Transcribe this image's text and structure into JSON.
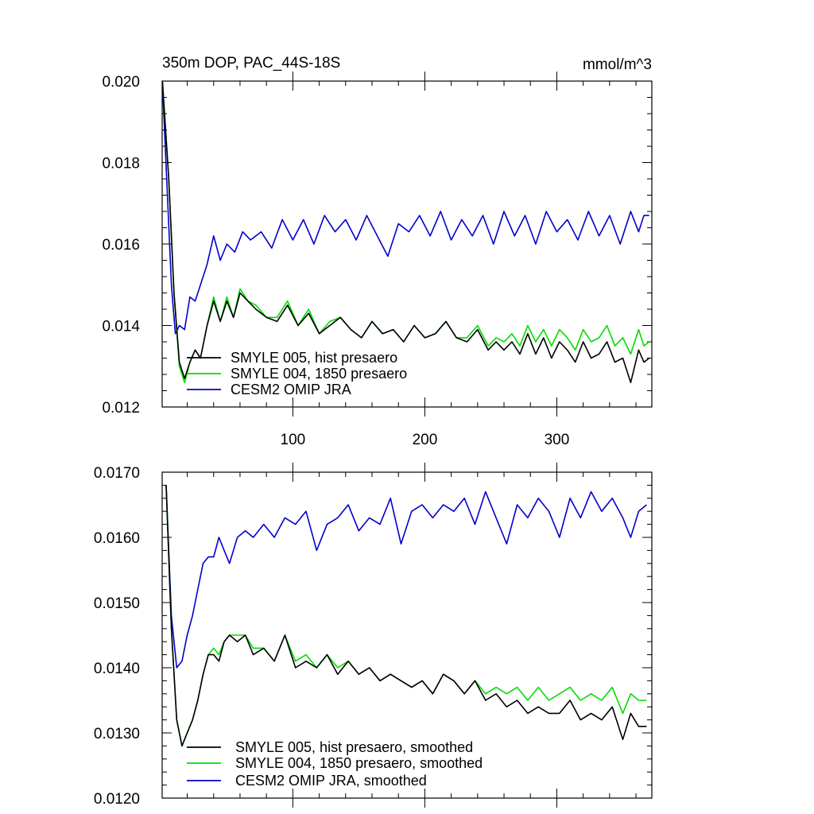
{
  "chart_data": [
    {
      "type": "line",
      "title": "350m DOP, PAC_44S-18S",
      "units": "mmol/m^3",
      "xlim": [
        1,
        372
      ],
      "ylim": [
        0.012,
        0.02
      ],
      "xticks": [
        100,
        200,
        300
      ],
      "yticks": [
        "0.012",
        "0.014",
        "0.016",
        "0.018",
        "0.020"
      ],
      "legend_position": "bottom-left",
      "series": [
        {
          "name": "SMYLE 005, hist presaero",
          "color": "#000000",
          "x": [
            1,
            6,
            10,
            14,
            18,
            22,
            26,
            30,
            35,
            40,
            45,
            50,
            55,
            60,
            66,
            72,
            80,
            88,
            96,
            104,
            112,
            120,
            128,
            136,
            144,
            152,
            160,
            168,
            176,
            184,
            192,
            200,
            208,
            216,
            224,
            232,
            240,
            248,
            254,
            260,
            266,
            272,
            278,
            284,
            290,
            296,
            302,
            308,
            314,
            320,
            326,
            332,
            338,
            344,
            350,
            356,
            362,
            366,
            370
          ],
          "values": [
            0.0201,
            0.0176,
            0.0148,
            0.0131,
            0.0127,
            0.0131,
            0.0134,
            0.0132,
            0.014,
            0.0146,
            0.0141,
            0.0146,
            0.0142,
            0.0148,
            0.0146,
            0.0144,
            0.0142,
            0.0141,
            0.0145,
            0.014,
            0.0143,
            0.0138,
            0.014,
            0.0142,
            0.0139,
            0.0137,
            0.0141,
            0.0138,
            0.0139,
            0.0136,
            0.014,
            0.0137,
            0.0138,
            0.0141,
            0.0137,
            0.0136,
            0.0139,
            0.0134,
            0.0136,
            0.0134,
            0.0136,
            0.0133,
            0.0138,
            0.0133,
            0.0137,
            0.0132,
            0.0136,
            0.0134,
            0.0131,
            0.0136,
            0.0132,
            0.0133,
            0.0136,
            0.0131,
            0.0132,
            0.0126,
            0.0134,
            0.0131,
            0.0132
          ]
        },
        {
          "name": "SMYLE 004, 1850 presaero",
          "color": "#00dd00",
          "x": [
            1,
            6,
            10,
            14,
            18,
            22,
            26,
            30,
            35,
            40,
            45,
            50,
            55,
            60,
            66,
            72,
            80,
            88,
            96,
            104,
            112,
            120,
            128,
            136,
            144,
            152,
            160,
            168,
            176,
            184,
            192,
            200,
            208,
            216,
            224,
            232,
            240,
            248,
            254,
            260,
            266,
            272,
            278,
            284,
            290,
            296,
            302,
            308,
            314,
            320,
            326,
            332,
            338,
            344,
            350,
            356,
            362,
            366,
            370
          ],
          "values": [
            0.0201,
            0.0176,
            0.0148,
            0.013,
            0.0126,
            0.0131,
            0.0134,
            0.0132,
            0.014,
            0.0147,
            0.0141,
            0.0147,
            0.0142,
            0.0149,
            0.0146,
            0.0145,
            0.0142,
            0.0142,
            0.0146,
            0.014,
            0.0144,
            0.0138,
            0.0141,
            0.0142,
            0.0139,
            0.0137,
            0.0141,
            0.0138,
            0.0139,
            0.0136,
            0.014,
            0.0137,
            0.0138,
            0.0141,
            0.0137,
            0.0137,
            0.014,
            0.0135,
            0.0137,
            0.0136,
            0.0138,
            0.0135,
            0.014,
            0.0136,
            0.0139,
            0.0135,
            0.0139,
            0.0137,
            0.0134,
            0.0139,
            0.0136,
            0.0137,
            0.014,
            0.0135,
            0.0137,
            0.0133,
            0.0139,
            0.0135,
            0.0136
          ]
        },
        {
          "name": "CESM2 OMIP JRA",
          "color": "#0000cc",
          "x": [
            1,
            5,
            8,
            11,
            14,
            18,
            22,
            26,
            30,
            35,
            40,
            45,
            50,
            56,
            62,
            68,
            76,
            84,
            92,
            100,
            108,
            116,
            124,
            132,
            140,
            148,
            156,
            164,
            172,
            180,
            188,
            196,
            204,
            212,
            220,
            228,
            236,
            244,
            252,
            260,
            268,
            276,
            284,
            292,
            300,
            308,
            316,
            324,
            332,
            340,
            348,
            356,
            362,
            366,
            370
          ],
          "values": [
            0.0201,
            0.0172,
            0.015,
            0.0138,
            0.014,
            0.0139,
            0.0147,
            0.0146,
            0.015,
            0.0155,
            0.0162,
            0.0156,
            0.016,
            0.0158,
            0.0163,
            0.0161,
            0.0163,
            0.0159,
            0.0166,
            0.0161,
            0.0166,
            0.016,
            0.0167,
            0.0163,
            0.0166,
            0.0161,
            0.0167,
            0.0162,
            0.0157,
            0.0165,
            0.0163,
            0.0167,
            0.0162,
            0.0168,
            0.0161,
            0.0166,
            0.0162,
            0.0167,
            0.016,
            0.0168,
            0.0162,
            0.0167,
            0.016,
            0.0168,
            0.0163,
            0.0166,
            0.0161,
            0.0168,
            0.0162,
            0.0167,
            0.016,
            0.0168,
            0.0163,
            0.0167,
            0.0167
          ]
        }
      ]
    },
    {
      "type": "line",
      "title": "",
      "xlim": [
        1,
        372
      ],
      "ylim": [
        0.012,
        0.017
      ],
      "xticks": [
        100,
        200,
        300
      ],
      "yticks": [
        "0.0120",
        "0.0130",
        "0.0140",
        "0.0150",
        "0.0160",
        "0.0170"
      ],
      "legend_position": "bottom-left",
      "series": [
        {
          "name": "SMYLE 005, hist presaero, smoothed",
          "color": "#000000",
          "x": [
            4,
            8,
            12,
            16,
            20,
            24,
            28,
            32,
            36,
            40,
            44,
            48,
            52,
            58,
            64,
            70,
            78,
            86,
            94,
            102,
            110,
            118,
            126,
            134,
            142,
            150,
            158,
            166,
            174,
            182,
            190,
            198,
            206,
            214,
            222,
            230,
            238,
            246,
            254,
            262,
            270,
            278,
            286,
            294,
            302,
            310,
            318,
            326,
            334,
            342,
            350,
            356,
            362,
            368
          ],
          "values": [
            0.0168,
            0.0146,
            0.0132,
            0.0128,
            0.013,
            0.0132,
            0.0135,
            0.0139,
            0.0142,
            0.0142,
            0.0141,
            0.0144,
            0.0145,
            0.0144,
            0.0145,
            0.0142,
            0.0143,
            0.0141,
            0.0145,
            0.014,
            0.0141,
            0.014,
            0.0142,
            0.0139,
            0.0141,
            0.0139,
            0.014,
            0.0138,
            0.0139,
            0.0138,
            0.0137,
            0.0138,
            0.0136,
            0.0139,
            0.0138,
            0.0136,
            0.0138,
            0.0135,
            0.0136,
            0.0134,
            0.0135,
            0.0133,
            0.0134,
            0.0133,
            0.0133,
            0.0135,
            0.0132,
            0.0133,
            0.0132,
            0.0134,
            0.0129,
            0.0133,
            0.0131,
            0.0131
          ]
        },
        {
          "name": "SMYLE 004, 1850 presaero, smoothed",
          "color": "#00dd00",
          "x": [
            4,
            8,
            12,
            16,
            20,
            24,
            28,
            32,
            36,
            40,
            44,
            48,
            52,
            58,
            64,
            70,
            78,
            86,
            94,
            102,
            110,
            118,
            126,
            134,
            142,
            150,
            158,
            166,
            174,
            182,
            190,
            198,
            206,
            214,
            222,
            230,
            238,
            246,
            254,
            262,
            270,
            278,
            286,
            294,
            302,
            310,
            318,
            326,
            334,
            342,
            350,
            356,
            362,
            368
          ],
          "values": [
            0.0168,
            0.0146,
            0.0132,
            0.0128,
            0.013,
            0.0132,
            0.0135,
            0.0139,
            0.0142,
            0.0143,
            0.0142,
            0.0144,
            0.0145,
            0.0145,
            0.0145,
            0.0143,
            0.0143,
            0.0141,
            0.0145,
            0.0141,
            0.0142,
            0.014,
            0.0142,
            0.014,
            0.0141,
            0.0139,
            0.014,
            0.0138,
            0.0139,
            0.0138,
            0.0137,
            0.0138,
            0.0136,
            0.0139,
            0.0138,
            0.0136,
            0.0138,
            0.0136,
            0.0137,
            0.0136,
            0.0137,
            0.0135,
            0.0137,
            0.0135,
            0.0136,
            0.0137,
            0.0135,
            0.0136,
            0.0135,
            0.0137,
            0.0133,
            0.0136,
            0.0135,
            0.0135
          ]
        },
        {
          "name": "CESM2 OMIP JRA, smoothed",
          "color": "#0000cc",
          "x": [
            4,
            8,
            12,
            16,
            20,
            24,
            28,
            32,
            36,
            40,
            44,
            48,
            52,
            58,
            64,
            70,
            78,
            86,
            94,
            102,
            110,
            118,
            126,
            134,
            142,
            150,
            158,
            166,
            174,
            182,
            190,
            198,
            206,
            214,
            222,
            230,
            238,
            246,
            254,
            262,
            270,
            278,
            286,
            294,
            302,
            310,
            318,
            326,
            334,
            342,
            350,
            356,
            362,
            368
          ],
          "values": [
            0.0168,
            0.0148,
            0.014,
            0.0141,
            0.0145,
            0.0148,
            0.0152,
            0.0156,
            0.0157,
            0.0157,
            0.016,
            0.0158,
            0.0156,
            0.016,
            0.0161,
            0.016,
            0.0162,
            0.016,
            0.0163,
            0.0162,
            0.0164,
            0.0158,
            0.0162,
            0.0163,
            0.0165,
            0.0161,
            0.0163,
            0.0162,
            0.0166,
            0.0159,
            0.0164,
            0.0165,
            0.0163,
            0.0165,
            0.0164,
            0.0166,
            0.0162,
            0.0167,
            0.0163,
            0.0159,
            0.0165,
            0.0163,
            0.0166,
            0.0164,
            0.016,
            0.0166,
            0.0163,
            0.0167,
            0.0164,
            0.0166,
            0.0163,
            0.016,
            0.0164,
            0.0165
          ]
        }
      ]
    }
  ]
}
